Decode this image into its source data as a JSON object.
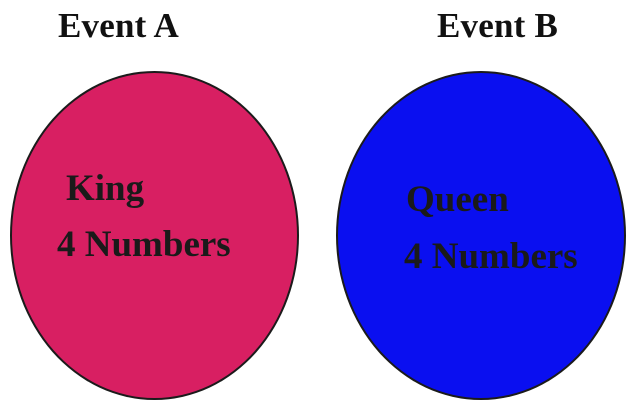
{
  "event_a": {
    "title": "Event A",
    "line1": "King",
    "line2": "4 Numbers",
    "fill_color": "#d81f62"
  },
  "event_b": {
    "title": "Event B",
    "line1": "Queen",
    "line2": "4 Numbers",
    "fill_color": "#0a0ff0"
  }
}
